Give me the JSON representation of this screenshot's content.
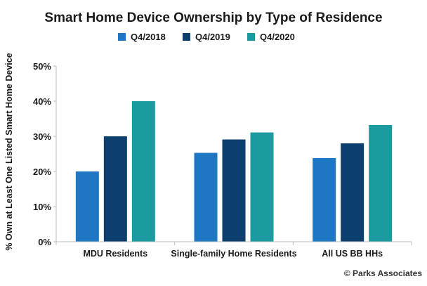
{
  "chart_data": {
    "type": "bar",
    "title": "Smart Home Device Ownership by Type of Residence",
    "ylabel": "% Own at Least One Listed Smart Home Device",
    "xlabel": "",
    "categories": [
      "MDU Residents",
      "Single-family Home Residents",
      "All US BB HHs"
    ],
    "series": [
      {
        "name": "Q4/2018",
        "values": [
          20,
          25.3,
          23.8
        ],
        "color": "#1f77c4"
      },
      {
        "name": "Q4/2019",
        "values": [
          30,
          29.1,
          28
        ],
        "color": "#0d3f6e"
      },
      {
        "name": "Q4/2020",
        "values": [
          40,
          31.1,
          33.2
        ],
        "color": "#1b9aa0"
      }
    ],
    "ylim": [
      0,
      50
    ],
    "yticks": [
      "0%",
      "10%",
      "20%",
      "30%",
      "40%",
      "50%"
    ],
    "legend_position": "top-center",
    "grid": false
  },
  "credit": "© Parks Associates"
}
